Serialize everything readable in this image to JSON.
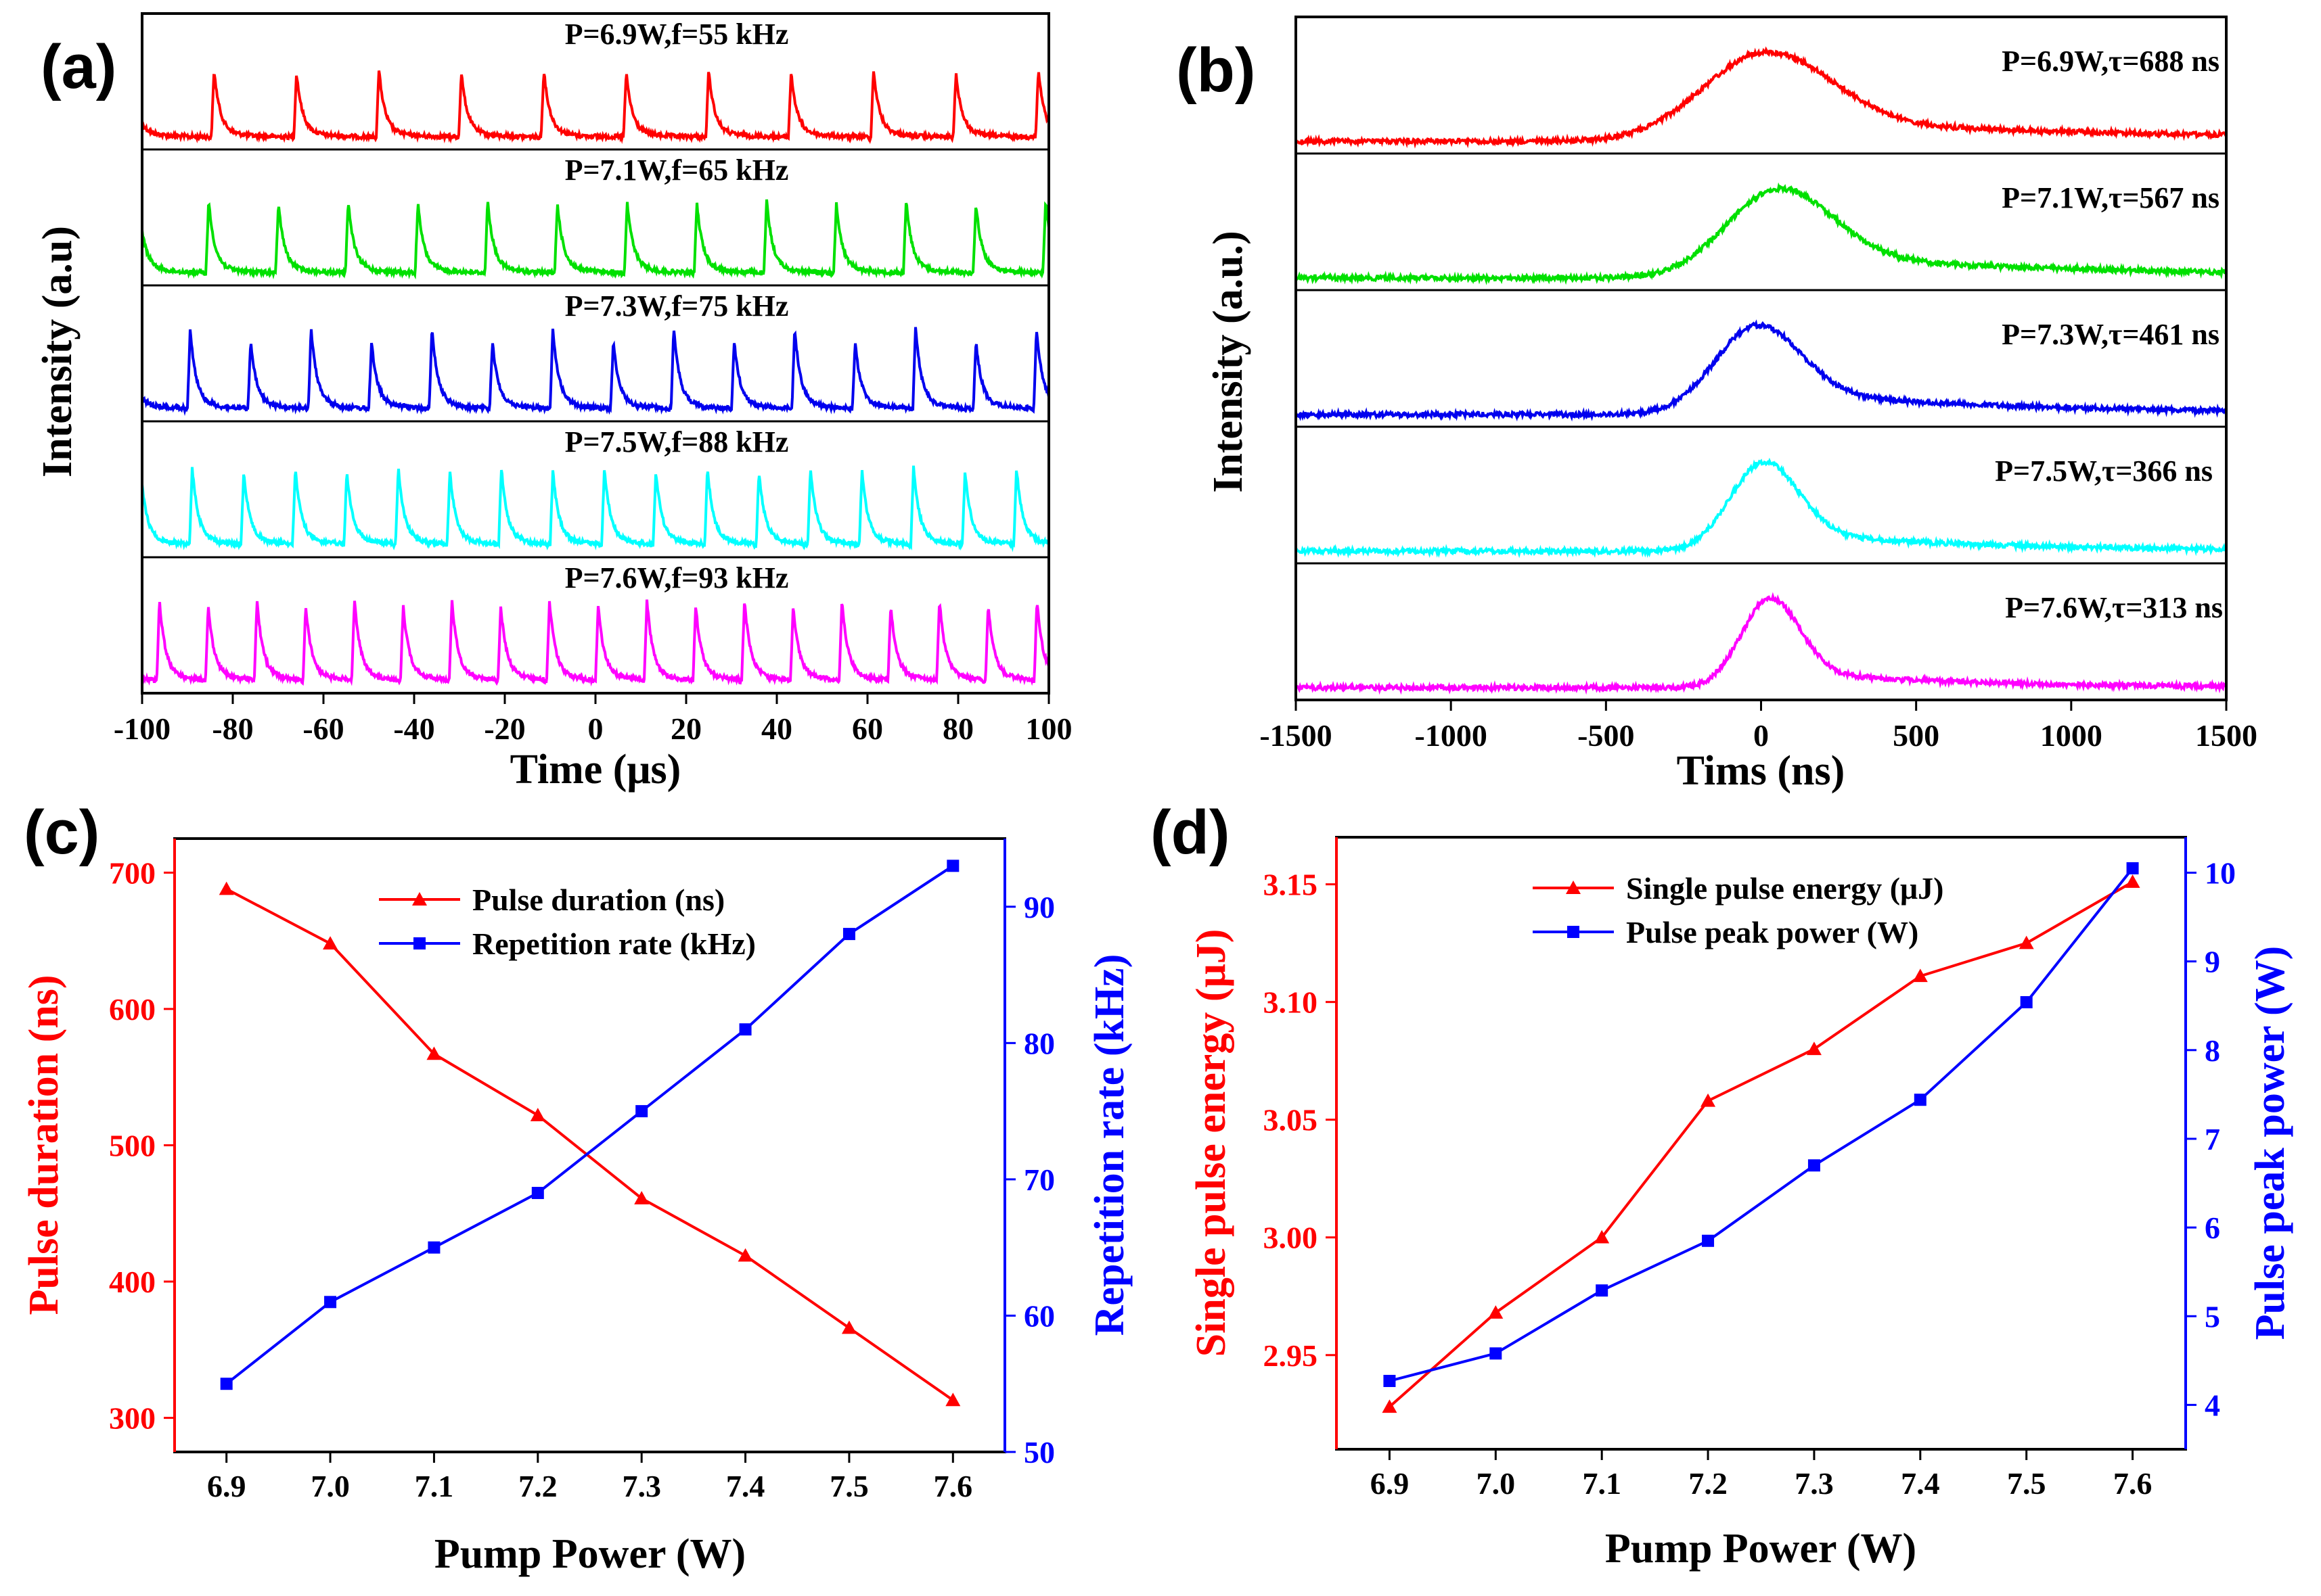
{
  "chart_data": [
    {
      "panel": "(a)",
      "type": "line",
      "xlabel": "Time (μs)",
      "ylabel": "Intensity (a.u)",
      "xlim": [
        -100,
        100
      ],
      "xticks": [
        -100,
        -80,
        -60,
        -40,
        -20,
        0,
        20,
        40,
        60,
        80,
        100
      ],
      "series": [
        {
          "label": "P=6.9W,f=55 kHz",
          "color": "#ff0000",
          "frequency_khz": 55
        },
        {
          "label": "P=7.1W,f=65 kHz",
          "color": "#00e000",
          "frequency_khz": 65
        },
        {
          "label": "P=7.3W,f=75 kHz",
          "color": "#0000ee",
          "frequency_khz": 75
        },
        {
          "label": "P=7.5W,f=88 kHz",
          "color": "#00ffff",
          "frequency_khz": 88
        },
        {
          "label": "P=7.6W,f=93 kHz",
          "color": "#ff00ff",
          "frequency_khz": 93
        }
      ]
    },
    {
      "panel": "(b)",
      "type": "line",
      "xlabel": "Tims (ns)",
      "ylabel": "Intensity (a.u.)",
      "xlim": [
        -1500,
        1500
      ],
      "xticks": [
        -1500,
        -1000,
        -500,
        0,
        500,
        1000,
        1500
      ],
      "series": [
        {
          "label": "P=6.9W,τ=688 ns",
          "color": "#ff0000",
          "width_ns": 688
        },
        {
          "label": "P=7.1W,τ=567 ns",
          "color": "#00e000",
          "width_ns": 567
        },
        {
          "label": "P=7.3W,τ=461 ns",
          "color": "#0000ee",
          "width_ns": 461
        },
        {
          "label": "P=7.5W,τ=366 ns",
          "color": "#00ffff",
          "width_ns": 366
        },
        {
          "label": "P=7.6W,τ=313 ns",
          "color": "#ff00ff",
          "width_ns": 313
        }
      ]
    },
    {
      "panel": "(c)",
      "type": "line",
      "xlabel": "Pump Power (W)",
      "ylabel_left": "Pulse duration (ns)",
      "ylabel_right": "Repetition rate (kHz)",
      "x": [
        6.9,
        7.0,
        7.1,
        7.2,
        7.3,
        7.4,
        7.5,
        7.6
      ],
      "xticks": [
        "6.9",
        "7.0",
        "7.1",
        "7.2",
        "7.3",
        "7.4",
        "7.5",
        "7.6"
      ],
      "xlim": [
        6.85,
        7.65
      ],
      "ylim_left": [
        275,
        725
      ],
      "ylim_right": [
        50,
        95
      ],
      "yticks_left": [
        300,
        400,
        500,
        600,
        700
      ],
      "yticks_right": [
        50,
        60,
        70,
        80,
        90
      ],
      "series": [
        {
          "name": "Pulse duration (ns)",
          "axis": "left",
          "color": "#ff0000",
          "marker": "triangle",
          "values": [
            688,
            648,
            567,
            522,
            461,
            419,
            366,
            313
          ]
        },
        {
          "name": "Repetition rate (kHz)",
          "axis": "right",
          "color": "#0000ff",
          "marker": "square",
          "values": [
            55,
            61,
            65,
            69,
            75,
            81,
            88,
            93
          ]
        }
      ]
    },
    {
      "panel": "(d)",
      "type": "line",
      "xlabel": "Pump Power (W)",
      "ylabel_left": "Single pulse energy (μJ)",
      "ylabel_right": "Pulse peak power (W)",
      "x": [
        6.9,
        7.0,
        7.1,
        7.2,
        7.3,
        7.4,
        7.5,
        7.6
      ],
      "xticks": [
        "6.9",
        "7.0",
        "7.1",
        "7.2",
        "7.3",
        "7.4",
        "7.5",
        "7.6"
      ],
      "xlim": [
        6.85,
        7.65
      ],
      "ylim_left": [
        2.91,
        3.17
      ],
      "ylim_right": [
        3.5,
        10.4
      ],
      "yticks_left": [
        "2.95",
        "3.00",
        "3.05",
        "3.10",
        "3.15"
      ],
      "yticks_right": [
        4,
        5,
        6,
        7,
        8,
        9,
        10
      ],
      "series": [
        {
          "name": "Single pulse energy (μJ)",
          "axis": "left",
          "color": "#ff0000",
          "marker": "triangle",
          "values": [
            2.928,
            2.968,
            3.0,
            3.058,
            3.08,
            3.111,
            3.125,
            3.151
          ]
        },
        {
          "name": "Pulse peak power (W)",
          "axis": "right",
          "color": "#0000ff",
          "marker": "square",
          "values": [
            4.27,
            4.58,
            5.29,
            5.85,
            6.7,
            7.44,
            8.54,
            10.05
          ]
        }
      ]
    }
  ]
}
